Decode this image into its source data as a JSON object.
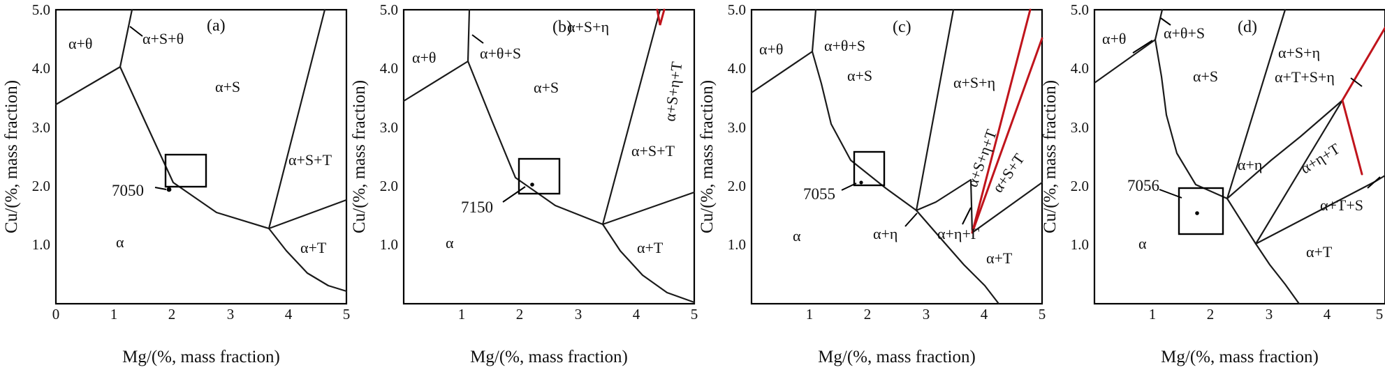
{
  "figure": {
    "panels": [
      {
        "label": "(a)",
        "x_label": "Mg/(%, mass fraction)",
        "y_label": "Cu/(%, mass fraction)",
        "x_ticks": [
          "0",
          "1",
          "2",
          "3",
          "4",
          "5"
        ],
        "y_ticks": [
          "5.0",
          "4.0",
          "3.0",
          "2.0",
          "1.0"
        ],
        "alloy": "7050",
        "regions": [
          "α+θ",
          "α+S+θ",
          "α+S",
          "α+S+T",
          "α",
          "α+T"
        ]
      },
      {
        "label": "(b)",
        "x_label": "Mg/(%, mass fraction)",
        "y_label": "Cu/(%, mass fraction)",
        "x_ticks": [
          "1",
          "2",
          "3",
          "4",
          "5"
        ],
        "y_ticks": [
          "5.0",
          "4.0",
          "3.0",
          "2.0",
          "1.0"
        ],
        "alloy": "7150",
        "regions": [
          "α+θ",
          "α+θ+S",
          "α+S+η",
          "α+S",
          "α+S+η+T",
          "α+S+T",
          "α",
          "α+T"
        ]
      },
      {
        "label": "(c)",
        "x_label": "Mg/(%, mass fraction)",
        "y_label": "Cu/(%, mass fraction)",
        "x_ticks": [
          "1",
          "2",
          "3",
          "4",
          "5"
        ],
        "y_ticks": [
          "5.0",
          "4.0",
          "3.0",
          "2.0",
          "1.0"
        ],
        "alloy": "7055",
        "regions": [
          "α+θ",
          "α+θ+S",
          "α+S",
          "α+S+η",
          "α+S+η+T",
          "α+S+T",
          "α",
          "α+η",
          "α+η+Γ",
          "α+T"
        ]
      },
      {
        "label": "(d)",
        "x_label": "Mg/(%, mass fraction)",
        "y_label": "Cu/(%, mass fraction)",
        "x_ticks": [
          "1",
          "2",
          "3",
          "4",
          "5"
        ],
        "y_ticks": [
          "5.0",
          "4.0",
          "3.0",
          "2.0",
          "1.0"
        ],
        "alloy": "7056",
        "regions": [
          "α+θ",
          "α+θ+S",
          "α+S",
          "α+S+η",
          "α+T+S+η",
          "α+η",
          "α+η+T",
          "α+T+S",
          "α",
          "α+T"
        ]
      }
    ]
  }
}
